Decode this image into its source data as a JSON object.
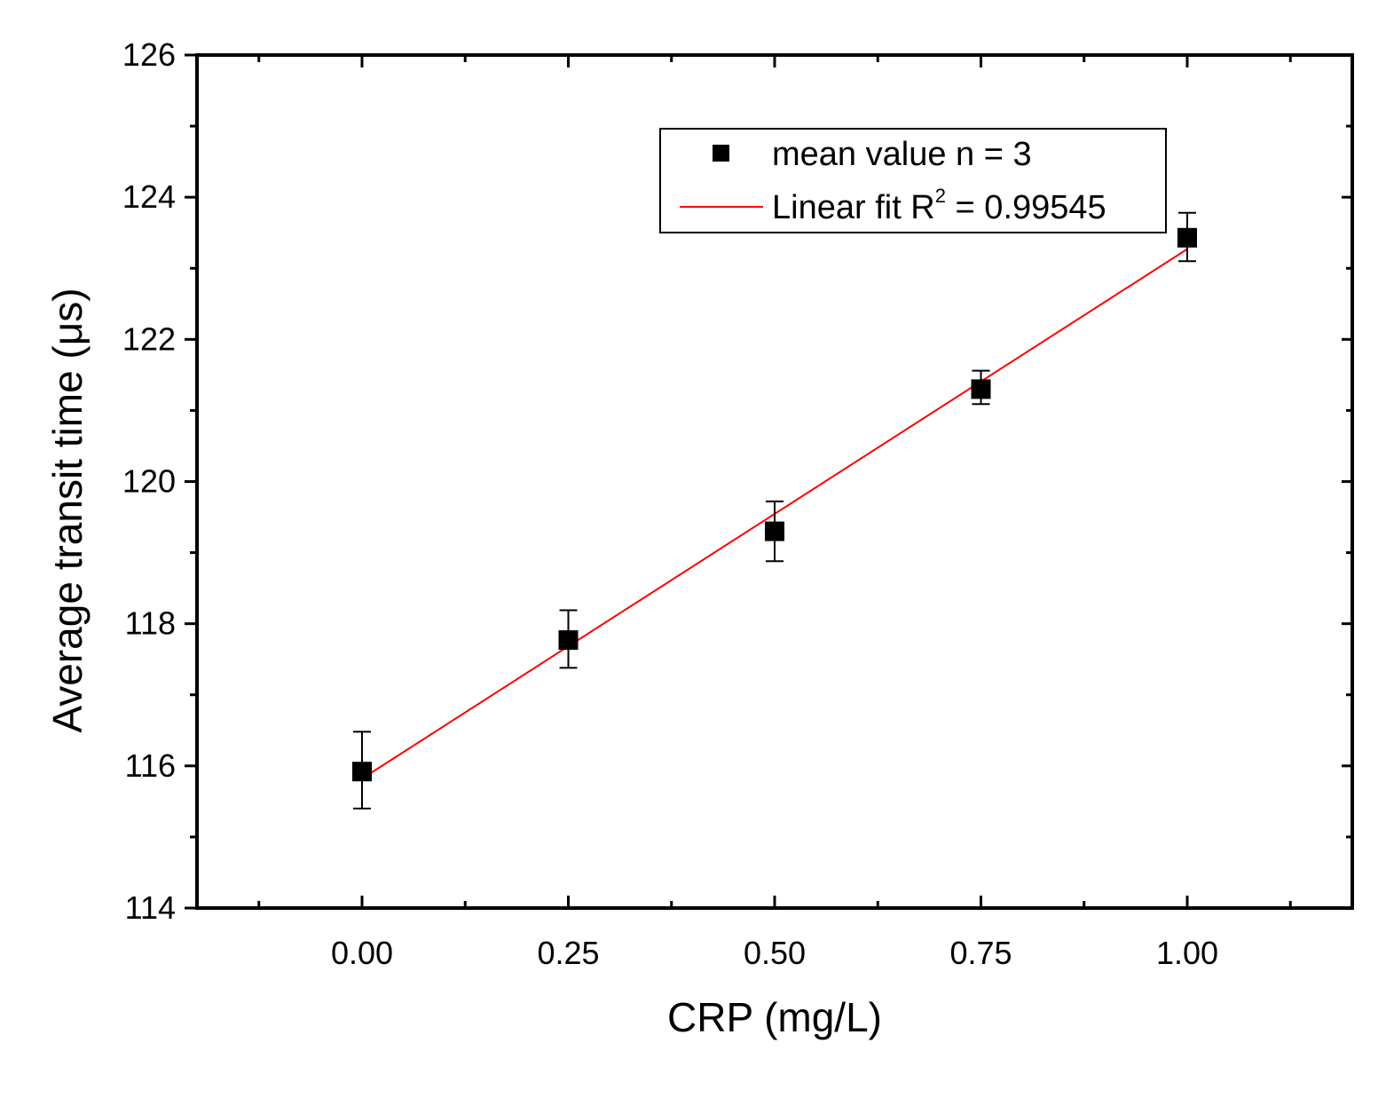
{
  "chart_data": {
    "type": "scatter",
    "xlabel": "CRP (mg/L)",
    "ylabel": "Average transit time (μs)",
    "xlim": [
      -0.2,
      1.2
    ],
    "ylim": [
      114,
      126
    ],
    "x_ticks": [
      "0.00",
      "0.25",
      "0.50",
      "0.75",
      "1.00"
    ],
    "y_ticks": [
      "114",
      "116",
      "118",
      "120",
      "122",
      "124",
      "126"
    ],
    "grid": false,
    "legend_position": "top-right",
    "series": [
      {
        "name": "mean value n = 3",
        "kind": "scatter",
        "marker": "square",
        "color": "#000000",
        "points": [
          {
            "x": 0.0,
            "y": 115.92,
            "err_low": 115.4,
            "err_high": 116.48
          },
          {
            "x": 0.25,
            "y": 117.77,
            "err_low": 117.38,
            "err_high": 118.19
          },
          {
            "x": 0.5,
            "y": 119.3,
            "err_low": 118.88,
            "err_high": 119.72
          },
          {
            "x": 0.75,
            "y": 121.3,
            "err_low": 121.09,
            "err_high": 121.56
          },
          {
            "x": 1.0,
            "y": 123.43,
            "err_low": 123.1,
            "err_high": 123.78
          }
        ]
      },
      {
        "name_text": "Linear fit R",
        "name_sup": "2",
        "name_tail": " = 0.99545",
        "kind": "line",
        "color": "#ff0000",
        "points": [
          {
            "x": 0.0,
            "y": 115.82
          },
          {
            "x": 1.0,
            "y": 123.27
          }
        ]
      }
    ]
  }
}
